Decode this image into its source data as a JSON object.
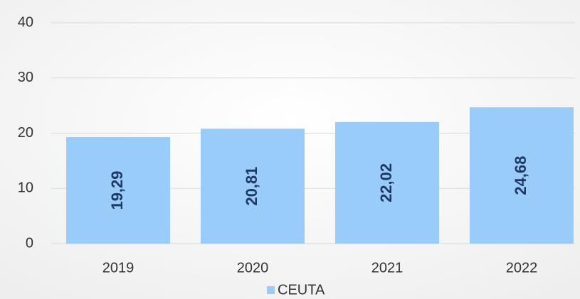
{
  "chart_data": {
    "type": "bar",
    "categories": [
      "2019",
      "2020",
      "2021",
      "2022"
    ],
    "series": [
      {
        "name": "CEUTA",
        "color": "#99ccf9",
        "values": [
          19.29,
          20.81,
          22.02,
          24.68
        ],
        "value_labels": [
          "19,29",
          "20,81",
          "22,02",
          "24,68"
        ]
      }
    ],
    "ylim": [
      0,
      40
    ],
    "yticks": [
      0,
      10,
      20,
      30,
      40
    ],
    "grid": true
  }
}
